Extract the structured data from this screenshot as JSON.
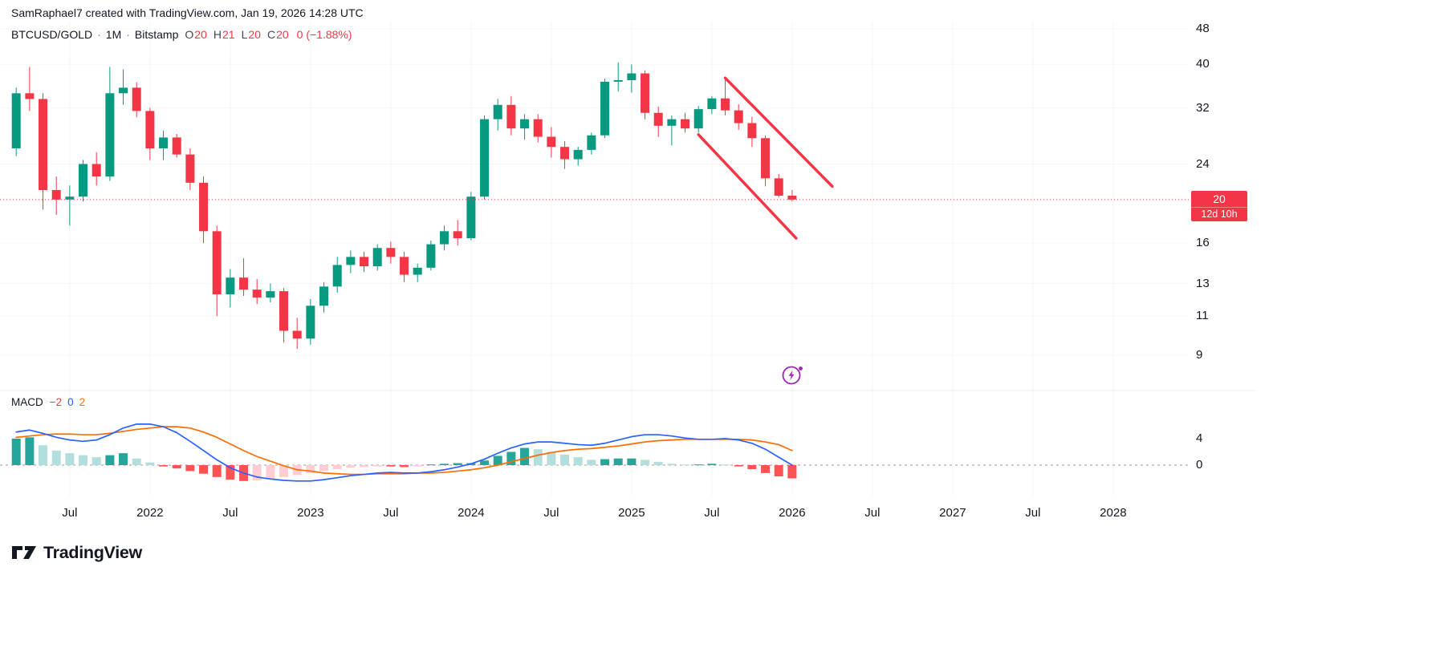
{
  "attribution": "SamRaphael7 created with TradingView.com, Jan 19, 2026 14:28 UTC",
  "legend": {
    "symbol": "BTCUSD/GOLD",
    "interval": "1M",
    "exchange": "Bitstamp",
    "sep": "·",
    "ohlc": [
      {
        "l": "O",
        "v": "20"
      },
      {
        "l": "H",
        "v": "21"
      },
      {
        "l": "L",
        "v": "20"
      },
      {
        "l": "C",
        "v": "20"
      }
    ],
    "change": "0 (−1.88%)"
  },
  "indicator": {
    "title": "MACD",
    "values": [
      {
        "text": "−2",
        "color": "#f23645"
      },
      {
        "text": "0",
        "color": "#2962ff"
      },
      {
        "text": "2",
        "color": "#ff6d00"
      }
    ]
  },
  "price_scale": {
    "ticks": [
      48,
      40,
      32,
      24,
      16,
      13,
      11,
      9
    ],
    "badge": {
      "price": "20",
      "countdown": "12d 10h"
    }
  },
  "macd_scale": {
    "ticks": [
      4,
      0
    ]
  },
  "x_axis": {
    "ticks": [
      {
        "label": "Jul",
        "month_index": 4
      },
      {
        "label": "2022",
        "month_index": 10
      },
      {
        "label": "Jul",
        "month_index": 16
      },
      {
        "label": "2023",
        "month_index": 22
      },
      {
        "label": "Jul",
        "month_index": 28
      },
      {
        "label": "2024",
        "month_index": 34
      },
      {
        "label": "Jul",
        "month_index": 40
      },
      {
        "label": "2025",
        "month_index": 46
      },
      {
        "label": "Jul",
        "month_index": 52
      },
      {
        "label": "2026",
        "month_index": 58
      },
      {
        "label": "Jul",
        "month_index": 64
      },
      {
        "label": "2027",
        "month_index": 70
      },
      {
        "label": "Jul",
        "month_index": 76
      },
      {
        "label": "2028",
        "month_index": 82
      }
    ]
  },
  "colors": {
    "up": "#089981",
    "down": "#f23645",
    "hist_up_strong": "#26a69a",
    "hist_up_weak": "#b2dfdb",
    "hist_down_strong": "#ff5252",
    "hist_down_weak": "#ffcdd2",
    "macd_line": "#2962ff",
    "signal_line": "#ff6d00",
    "trendline": "#f23645",
    "boost_icon": "#9c27b0",
    "zero_line": "#9598a1",
    "text": "#131722"
  },
  "logo": {
    "name": "TradingView"
  },
  "chart_data": {
    "type": "candlestick",
    "title": "BTCUSD/GOLD · 1M · Bitstamp",
    "y_scale": "log",
    "y_ticks": [
      48,
      40,
      32,
      24,
      20,
      16,
      13,
      11,
      9
    ],
    "current_price": 20.0,
    "months": [
      "2021-03",
      "2021-04",
      "2021-05",
      "2021-06",
      "2021-07",
      "2021-08",
      "2021-09",
      "2021-10",
      "2021-11",
      "2021-12",
      "2022-01",
      "2022-02",
      "2022-03",
      "2022-04",
      "2022-05",
      "2022-06",
      "2022-07",
      "2022-08",
      "2022-09",
      "2022-10",
      "2022-11",
      "2022-12",
      "2023-01",
      "2023-02",
      "2023-03",
      "2023-04",
      "2023-05",
      "2023-06",
      "2023-07",
      "2023-08",
      "2023-09",
      "2023-10",
      "2023-11",
      "2023-12",
      "2024-01",
      "2024-02",
      "2024-03",
      "2024-04",
      "2024-05",
      "2024-06",
      "2024-07",
      "2024-08",
      "2024-09",
      "2024-10",
      "2024-11",
      "2024-12",
      "2025-01",
      "2025-02",
      "2025-03",
      "2025-04",
      "2025-05",
      "2025-06",
      "2025-07",
      "2025-08",
      "2025-09",
      "2025-10",
      "2025-11",
      "2025-12",
      "2026-01"
    ],
    "candles": [
      [
        26,
        35.5,
        25,
        34.5
      ],
      [
        34.5,
        39.5,
        31.5,
        33.5
      ],
      [
        33.5,
        34.5,
        19,
        21
      ],
      [
        21,
        22.5,
        18.5,
        20
      ],
      [
        20,
        21.5,
        17.5,
        20.3
      ],
      [
        20.3,
        24.5,
        19.8,
        24
      ],
      [
        24,
        25.5,
        21.5,
        22.5
      ],
      [
        22.5,
        39.5,
        22,
        34.5
      ],
      [
        34.5,
        39,
        32.5,
        35.5
      ],
      [
        35.5,
        36.5,
        30.5,
        31.5
      ],
      [
        31.5,
        32,
        24.5,
        26
      ],
      [
        26,
        28.5,
        24.5,
        27.5
      ],
      [
        27.5,
        28,
        24.8,
        25.2
      ],
      [
        25.2,
        26,
        21,
        21.8
      ],
      [
        21.8,
        22.5,
        16,
        17
      ],
      [
        17,
        17.5,
        11,
        12.3
      ],
      [
        12.3,
        14,
        11.5,
        13.4
      ],
      [
        13.4,
        14.8,
        12.2,
        12.6
      ],
      [
        12.6,
        13.3,
        11.7,
        12.1
      ],
      [
        12.1,
        13,
        11.8,
        12.5
      ],
      [
        12.5,
        12.7,
        9.6,
        10.2
      ],
      [
        10.2,
        10.9,
        9.3,
        9.8
      ],
      [
        9.8,
        12,
        9.5,
        11.6
      ],
      [
        11.6,
        13.1,
        11.2,
        12.8
      ],
      [
        12.8,
        14.9,
        12.4,
        14.3
      ],
      [
        14.3,
        15.4,
        13.7,
        14.9
      ],
      [
        14.9,
        15.3,
        13.8,
        14.2
      ],
      [
        14.2,
        15.9,
        13.9,
        15.6
      ],
      [
        15.6,
        16.1,
        14.4,
        14.9
      ],
      [
        14.9,
        15.3,
        13.1,
        13.6
      ],
      [
        13.6,
        14.4,
        13.1,
        14.1
      ],
      [
        14.1,
        16.2,
        13.9,
        15.9
      ],
      [
        15.9,
        17.5,
        15.4,
        17
      ],
      [
        17,
        18,
        15.8,
        16.4
      ],
      [
        16.4,
        20.8,
        16.2,
        20.3
      ],
      [
        20.3,
        30.8,
        20,
        30.2
      ],
      [
        30.2,
        33.5,
        28.5,
        32.5
      ],
      [
        32.5,
        34,
        27.8,
        28.8
      ],
      [
        28.8,
        31,
        27.2,
        30.2
      ],
      [
        30.2,
        31,
        26.8,
        27.6
      ],
      [
        27.6,
        29,
        24.8,
        26.2
      ],
      [
        26.2,
        27,
        23.4,
        24.6
      ],
      [
        24.6,
        26.2,
        23.8,
        25.8
      ],
      [
        25.8,
        28.2,
        25.2,
        27.8
      ],
      [
        27.8,
        37.2,
        27.4,
        36.6
      ],
      [
        36.6,
        40.4,
        34.8,
        36.9
      ],
      [
        36.9,
        40,
        34.6,
        38.2
      ],
      [
        38.2,
        38.8,
        30.2,
        31.2
      ],
      [
        31.2,
        32.2,
        27.6,
        29.2
      ],
      [
        29.2,
        30.8,
        26.4,
        30.2
      ],
      [
        30.2,
        31.2,
        28.2,
        28.8
      ],
      [
        28.8,
        32.3,
        28.2,
        31.8
      ],
      [
        31.8,
        34,
        31,
        33.6
      ],
      [
        33.6,
        37.6,
        30.8,
        31.6
      ],
      [
        31.6,
        32.6,
        28.6,
        29.6
      ],
      [
        29.6,
        30.6,
        26.2,
        27.4
      ],
      [
        27.4,
        27.8,
        21.4,
        22.3
      ],
      [
        22.3,
        22.8,
        20.2,
        20.4
      ],
      [
        20.4,
        21,
        19.8,
        20
      ]
    ],
    "trendlines": [
      {
        "i1": 53,
        "p1": 37.3,
        "i2": 61,
        "p2": 21.4
      },
      {
        "i1": 51,
        "p1": 27.9,
        "i2": 58.3,
        "p2": 16.4
      }
    ],
    "macd": {
      "y_ticks": [
        4,
        0
      ],
      "histogram": [
        4.0,
        4.2,
        3.0,
        2.2,
        1.8,
        1.5,
        1.2,
        1.5,
        1.8,
        1.0,
        0.4,
        -0.2,
        -0.5,
        -0.9,
        -1.3,
        -1.8,
        -2.2,
        -2.4,
        -2.3,
        -2.1,
        -1.8,
        -1.5,
        -1.2,
        -0.9,
        -0.6,
        -0.4,
        -0.3,
        -0.2,
        -0.2,
        -0.3,
        -0.2,
        0.1,
        0.2,
        0.3,
        0.3,
        0.7,
        1.4,
        2.0,
        2.6,
        2.4,
        2.0,
        1.6,
        1.2,
        0.8,
        0.9,
        1.0,
        1.0,
        0.8,
        0.5,
        0.2,
        0.1,
        0.1,
        0.2,
        0.1,
        -0.2,
        -0.6,
        -1.2,
        -1.7,
        -2.0
      ],
      "macd_line": [
        5.0,
        5.3,
        4.8,
        4.2,
        3.8,
        3.6,
        3.8,
        4.6,
        5.6,
        6.2,
        6.2,
        5.8,
        4.9,
        3.6,
        2.2,
        0.8,
        -0.4,
        -1.2,
        -1.8,
        -2.1,
        -2.3,
        -2.4,
        -2.4,
        -2.2,
        -1.9,
        -1.6,
        -1.4,
        -1.2,
        -1.1,
        -1.2,
        -1.2,
        -1.0,
        -0.7,
        -0.3,
        0.2,
        0.9,
        1.8,
        2.6,
        3.2,
        3.5,
        3.5,
        3.3,
        3.1,
        3.0,
        3.3,
        3.8,
        4.3,
        4.6,
        4.6,
        4.4,
        4.1,
        3.9,
        3.9,
        4.0,
        3.8,
        3.3,
        2.4,
        1.2,
        0.0
      ],
      "signal_line": [
        4.2,
        4.4,
        4.6,
        4.7,
        4.7,
        4.6,
        4.6,
        4.8,
        5.1,
        5.4,
        5.6,
        5.8,
        5.8,
        5.6,
        5.0,
        4.2,
        3.2,
        2.2,
        1.3,
        0.6,
        -0.1,
        -0.7,
        -0.9,
        -1.2,
        -1.3,
        -1.4,
        -1.4,
        -1.3,
        -1.3,
        -1.3,
        -1.2,
        -1.2,
        -1.1,
        -0.9,
        -0.7,
        -0.4,
        0.0,
        0.5,
        1.0,
        1.5,
        1.9,
        2.2,
        2.4,
        2.5,
        2.7,
        2.9,
        3.2,
        3.5,
        3.7,
        3.8,
        3.9,
        3.9,
        3.9,
        3.9,
        3.9,
        3.8,
        3.5,
        3.1,
        2.2
      ]
    }
  }
}
